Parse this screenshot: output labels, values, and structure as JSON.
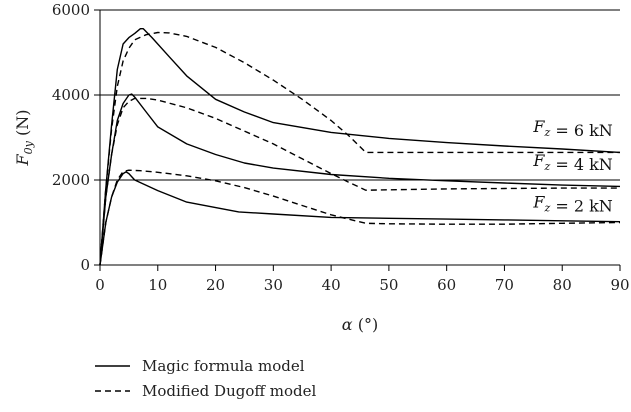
{
  "chart_data": {
    "type": "line",
    "xlabel": "α (°)",
    "ylabel": "F_0y (N)",
    "xlim": [
      0,
      90
    ],
    "ylim": [
      0,
      6000
    ],
    "x_ticks": [
      0,
      10,
      20,
      30,
      40,
      50,
      60,
      70,
      80,
      90
    ],
    "y_ticks": [
      0,
      2000,
      4000,
      6000
    ],
    "grid": "horizontal lines at 2000, 4000, 6000",
    "legend_placement": "bottom-left, below plot",
    "annotations": [
      {
        "text": "F_z = 6 kN",
        "x": 75,
        "y": 3130
      },
      {
        "text": "F_z = 4 kN",
        "x": 75,
        "y": 2330
      },
      {
        "text": "F_z = 2 kN",
        "x": 75,
        "y": 1350
      }
    ],
    "series": [
      {
        "name": "Magic formula model",
        "style": "solid",
        "color": "#000000",
        "points": [
          [
            [
              0,
              0
            ],
            [
              0.5,
              900
            ],
            [
              1,
              1800
            ],
            [
              2,
              3300
            ],
            [
              3,
              4600
            ],
            [
              4,
              5200
            ],
            [
              5,
              5350
            ],
            [
              6,
              5450
            ],
            [
              7,
              5560
            ],
            [
              7.5,
              5560
            ],
            [
              9,
              5350
            ],
            [
              12,
              4900
            ],
            [
              15,
              4450
            ],
            [
              20,
              3900
            ],
            [
              25,
              3600
            ],
            [
              30,
              3350
            ],
            [
              40,
              3120
            ],
            [
              45,
              3050
            ],
            [
              50,
              2980
            ],
            [
              60,
              2880
            ],
            [
              70,
              2800
            ],
            [
              80,
              2730
            ],
            [
              90,
              2650
            ]
          ],
          [
            [
              0,
              0
            ],
            [
              0.5,
              800
            ],
            [
              1,
              1600
            ],
            [
              2,
              2600
            ],
            [
              3,
              3400
            ],
            [
              4,
              3800
            ],
            [
              5,
              4000
            ],
            [
              5.5,
              4020
            ],
            [
              6,
              3950
            ],
            [
              8,
              3600
            ],
            [
              10,
              3250
            ],
            [
              15,
              2850
            ],
            [
              20,
              2600
            ],
            [
              25,
              2400
            ],
            [
              30,
              2280
            ],
            [
              40,
              2130
            ],
            [
              50,
              2040
            ],
            [
              60,
              1980
            ],
            [
              70,
              1930
            ],
            [
              80,
              1880
            ],
            [
              90,
              1850
            ]
          ],
          [
            [
              0,
              0
            ],
            [
              0.5,
              500
            ],
            [
              1,
              1000
            ],
            [
              2,
              1600
            ],
            [
              3,
              1950
            ],
            [
              4,
              2150
            ],
            [
              4.5,
              2190
            ],
            [
              5,
              2150
            ],
            [
              6,
              2000
            ],
            [
              10,
              1750
            ],
            [
              15,
              1480
            ],
            [
              20,
              1350
            ],
            [
              24,
              1250
            ],
            [
              30,
              1200
            ],
            [
              40,
              1120
            ],
            [
              50,
              1100
            ],
            [
              60,
              1080
            ],
            [
              70,
              1060
            ],
            [
              80,
              1040
            ],
            [
              90,
              1020
            ]
          ]
        ]
      },
      {
        "name": "Modified Dugoff model",
        "style": "dashed",
        "color": "#000000",
        "points": [
          [
            [
              0,
              0
            ],
            [
              0.5,
              900
            ],
            [
              1,
              1800
            ],
            [
              2,
              3200
            ],
            [
              3,
              4200
            ],
            [
              4,
              4800
            ],
            [
              5,
              5100
            ],
            [
              6,
              5300
            ],
            [
              8,
              5420
            ],
            [
              10,
              5470
            ],
            [
              12,
              5460
            ],
            [
              15,
              5380
            ],
            [
              20,
              5120
            ],
            [
              25,
              4760
            ],
            [
              30,
              4350
            ],
            [
              35,
              3900
            ],
            [
              40,
              3400
            ],
            [
              43,
              3050
            ],
            [
              46,
              2650
            ],
            [
              50,
              2650
            ],
            [
              60,
              2650
            ],
            [
              70,
              2650
            ],
            [
              80,
              2650
            ],
            [
              90,
              2650
            ]
          ],
          [
            [
              0,
              0
            ],
            [
              0.5,
              800
            ],
            [
              1,
              1600
            ],
            [
              2,
              2600
            ],
            [
              3,
              3300
            ],
            [
              4,
              3700
            ],
            [
              5,
              3850
            ],
            [
              6,
              3920
            ],
            [
              8,
              3920
            ],
            [
              10,
              3880
            ],
            [
              15,
              3700
            ],
            [
              20,
              3450
            ],
            [
              25,
              3150
            ],
            [
              30,
              2850
            ],
            [
              35,
              2500
            ],
            [
              40,
              2150
            ],
            [
              43,
              1950
            ],
            [
              46,
              1760
            ],
            [
              50,
              1770
            ],
            [
              60,
              1790
            ],
            [
              70,
              1800
            ],
            [
              80,
              1810
            ],
            [
              90,
              1810
            ]
          ],
          [
            [
              0,
              0
            ],
            [
              0.5,
              500
            ],
            [
              1,
              1000
            ],
            [
              2,
              1600
            ],
            [
              3,
              2000
            ],
            [
              4,
              2200
            ],
            [
              5,
              2230
            ],
            [
              7,
              2220
            ],
            [
              10,
              2180
            ],
            [
              15,
              2100
            ],
            [
              20,
              1980
            ],
            [
              25,
              1820
            ],
            [
              30,
              1620
            ],
            [
              35,
              1400
            ],
            [
              40,
              1180
            ],
            [
              43,
              1080
            ],
            [
              46,
              980
            ],
            [
              50,
              970
            ],
            [
              60,
              960
            ],
            [
              70,
              960
            ],
            [
              80,
              980
            ],
            [
              90,
              1000
            ]
          ]
        ]
      }
    ]
  }
}
